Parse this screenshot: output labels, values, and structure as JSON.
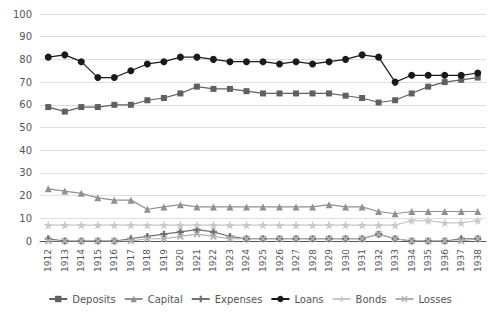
{
  "chart_data": {
    "type": "line",
    "categories": [
      "1912",
      "1913",
      "1914",
      "1915",
      "1916",
      "1917",
      "1918",
      "1919",
      "1920",
      "1921",
      "1922",
      "1923",
      "1924",
      "1925",
      "1926",
      "1927",
      "1928",
      "1929",
      "1930",
      "1931",
      "1932",
      "1933",
      "1934",
      "1935",
      "1936",
      "1937",
      "1938"
    ],
    "series": [
      {
        "name": "Deposits",
        "color": "#606060",
        "marker": "square",
        "values": [
          59,
          57,
          59,
          59,
          60,
          60,
          62,
          63,
          65,
          68,
          67,
          67,
          66,
          65,
          65,
          65,
          65,
          65,
          64,
          63,
          61,
          62,
          65,
          68,
          70,
          71,
          72
        ]
      },
      {
        "name": "Capital",
        "color": "#909090",
        "marker": "triangle",
        "values": [
          23,
          22,
          21,
          19,
          18,
          18,
          14,
          15,
          16,
          15,
          15,
          15,
          15,
          15,
          15,
          15,
          15,
          16,
          15,
          15,
          13,
          12,
          13,
          13,
          13,
          13,
          13
        ]
      },
      {
        "name": "Expenses",
        "color": "#707070",
        "marker": "plus",
        "values": [
          1,
          0,
          0,
          0,
          0,
          1,
          2,
          3,
          4,
          5,
          4,
          2,
          1,
          1,
          1,
          1,
          1,
          1,
          1,
          1,
          3,
          1,
          0,
          0,
          0,
          1,
          1
        ]
      },
      {
        "name": "Loans",
        "color": "#1a1a1a",
        "marker": "circle",
        "values": [
          81,
          82,
          79,
          72,
          72,
          75,
          78,
          79,
          81,
          81,
          80,
          79,
          79,
          79,
          78,
          79,
          78,
          79,
          80,
          82,
          81,
          70,
          73,
          73,
          73,
          73,
          74
        ]
      },
      {
        "name": "Bonds",
        "color": "#c8c8c8",
        "marker": "star",
        "values": [
          7,
          7,
          7,
          7,
          7,
          7,
          7,
          7,
          7,
          7,
          7,
          7,
          7,
          7,
          7,
          7,
          7,
          7,
          7,
          7,
          7,
          7,
          9,
          9,
          8,
          8,
          9
        ]
      },
      {
        "name": "Losses",
        "color": "#b0b0b0",
        "marker": "x",
        "values": [
          0,
          0,
          0,
          0,
          0,
          0,
          1,
          1,
          2,
          3,
          2,
          1,
          1,
          1,
          1,
          1,
          1,
          1,
          1,
          1,
          3,
          1,
          0,
          0,
          0,
          0,
          1
        ]
      }
    ],
    "ylim": [
      0,
      100
    ],
    "yticks": [
      0,
      10,
      20,
      30,
      40,
      50,
      60,
      70,
      80,
      90,
      100
    ],
    "grid": true,
    "legend": "bottom"
  }
}
